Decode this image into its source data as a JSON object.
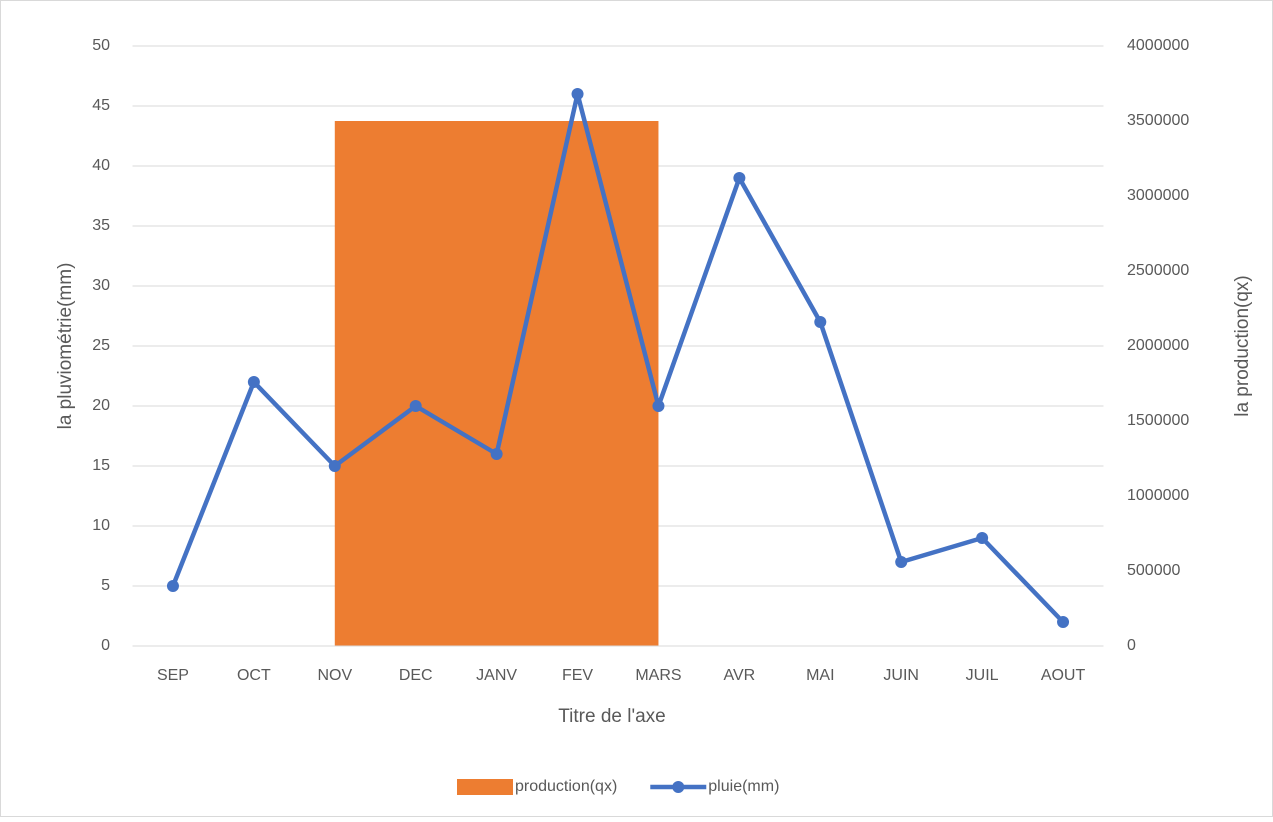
{
  "chart_data": {
    "type": "combo",
    "categories": [
      "SEP",
      "OCT",
      "NOV",
      "DEC",
      "JANV",
      "FEV",
      "MARS",
      "AVR",
      "MAI",
      "JUIN",
      "JUIL",
      "AOUT"
    ],
    "series": [
      {
        "name": "production(qx)",
        "type": "bar",
        "axis": "y2",
        "color": "#ed7d31",
        "values": [
          null,
          null,
          null,
          null,
          3500000,
          null,
          null,
          null,
          null,
          null,
          null,
          null
        ]
      },
      {
        "name": "pluie(mm)",
        "type": "line",
        "axis": "y",
        "color": "#4472c4",
        "values": [
          5,
          22,
          15,
          20,
          16,
          46,
          20,
          39,
          27,
          7,
          9,
          2
        ]
      }
    ],
    "ylabel": "la pluviométrie(mm)",
    "y2label": "la production(qx)",
    "xlabel": "Titre de l'axe",
    "ylim": [
      0,
      50
    ],
    "yticks": [
      0,
      5,
      10,
      15,
      20,
      25,
      30,
      35,
      40,
      45,
      50
    ],
    "y2lim": [
      0,
      4000000
    ],
    "y2ticks": [
      0,
      500000,
      1000000,
      1500000,
      2000000,
      2500000,
      3000000,
      3500000,
      4000000
    ],
    "grid": true,
    "legend": "bottom"
  }
}
